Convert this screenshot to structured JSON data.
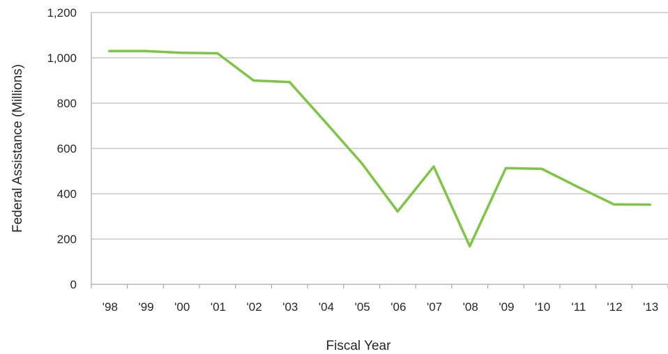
{
  "chart_data": {
    "type": "line",
    "title": "",
    "xlabel": "Fiscal Year",
    "ylabel": "Federal Assistance (Millions)",
    "categories": [
      "'98",
      "'99",
      "'00",
      "'01",
      "'02",
      "'03",
      "'04",
      "'05",
      "'06",
      "'07",
      "'08",
      "'09",
      "'10",
      "'11",
      "'12",
      "'13"
    ],
    "series": [
      {
        "values": [
          1030,
          1030,
          1022,
          1020,
          900,
          893,
          715,
          535,
          322,
          520,
          168,
          513,
          510,
          430,
          353,
          352
        ]
      }
    ],
    "ylim": [
      0,
      1200
    ],
    "yticks": [
      0,
      200,
      400,
      600,
      800,
      1000,
      1200
    ],
    "ytick_labels": [
      "0",
      "200",
      "400",
      "600",
      "800",
      "1,000",
      "1,200"
    ],
    "grid": true,
    "legend": "none",
    "colors": {
      "line": "#7dc542",
      "grid": "#bfbfbf",
      "axis": "#a6a6a6",
      "text": "#262626"
    }
  }
}
